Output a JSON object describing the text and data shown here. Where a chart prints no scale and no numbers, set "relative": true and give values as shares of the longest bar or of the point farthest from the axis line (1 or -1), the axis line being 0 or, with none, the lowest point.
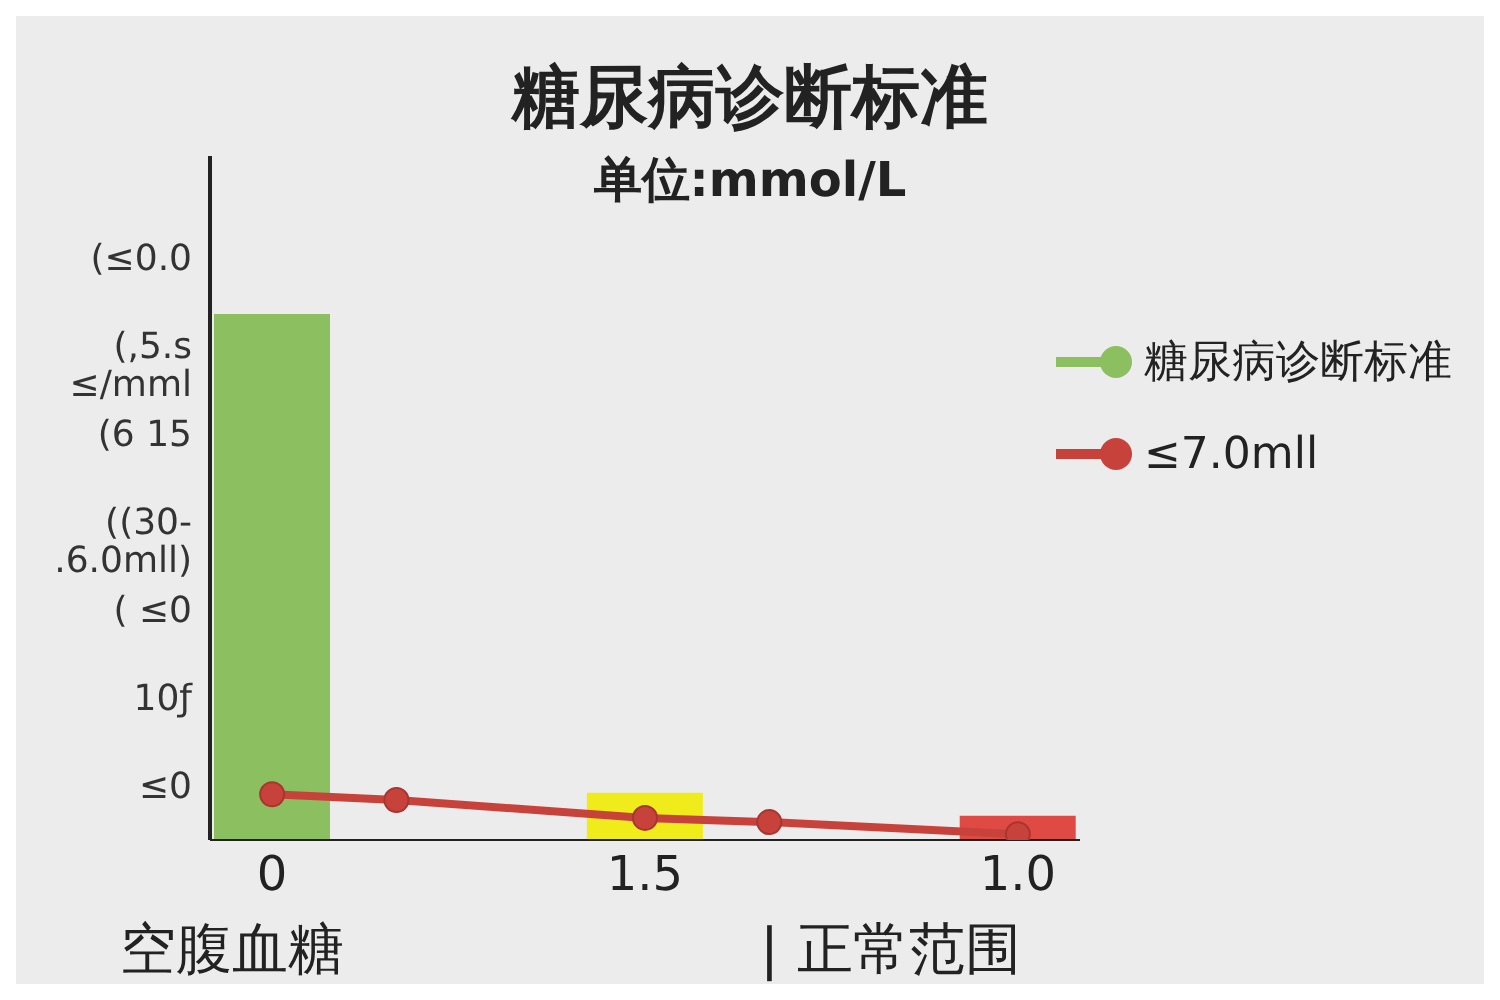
{
  "chart_data": {
    "type": "bar",
    "title": "糖尿病诊断标准",
    "subtitle": "单位:mmol/L",
    "relative": true,
    "categories": [
      "0",
      null,
      null,
      "1.5",
      null,
      null,
      "1.0"
    ],
    "series": [
      {
        "name": "糖尿病诊断标准",
        "color": "#8cbf5f",
        "colors": [
          "#8cbf5f",
          null,
          null,
          "#f0eb1a",
          null,
          null,
          "#e04a45"
        ],
        "values": [
          1,
          null,
          null,
          0.09,
          null,
          null,
          0.046
        ]
      },
      {
        "name": "≤7.0mll",
        "type": "line",
        "color": "#c8423c",
        "values": [
          0.087,
          0.076,
          null,
          0.042,
          0.034,
          null,
          0.011
        ]
      }
    ],
    "annotations": [
      "(≤0.0",
      "(,5.s ≤/mml",
      "(6 15",
      "((30- .6.0mll)",
      "( ≤0",
      "10ƒ",
      "≤0",
      "空腹血糖",
      "| 正常范围"
    ],
    "legend": "right",
    "marker": "circle",
    "grid": false
  }
}
